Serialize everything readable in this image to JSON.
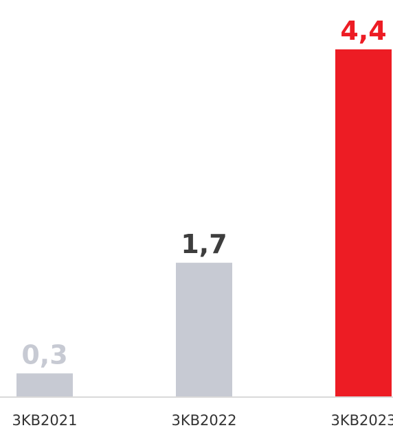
{
  "chart_data": {
    "type": "bar",
    "categories": [
      "3KB2021",
      "3KB2022",
      "3KB2023"
    ],
    "values": [
      0.3,
      1.7,
      4.4
    ],
    "value_labels": [
      "0,3",
      "1,7",
      "4,4"
    ],
    "title": "",
    "xlabel": "",
    "ylabel": "",
    "ylim": [
      0,
      4.4
    ],
    "grid": false,
    "bar_colors": [
      "#c7cad3",
      "#c7cad3",
      "#ed1c24"
    ],
    "label_colors": [
      "#c7cad3",
      "#3d3d3d",
      "#ed1c24"
    ],
    "axis_color": "#d9d9d9"
  }
}
